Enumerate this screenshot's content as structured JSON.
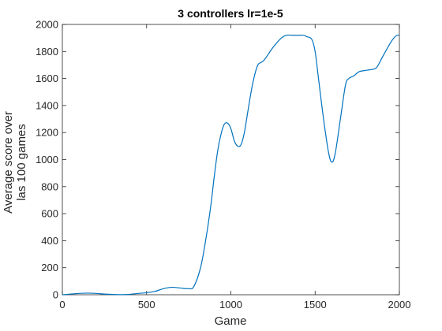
{
  "chart_data": {
    "type": "line",
    "title": "3 controllers lr=1e-5",
    "xlabel": "Game",
    "ylabel_lines": [
      "Average score over",
      "las 100 games"
    ],
    "xlim": [
      0,
      2000
    ],
    "ylim": [
      0,
      2000
    ],
    "xticks": [
      0,
      500,
      1000,
      1500,
      2000
    ],
    "yticks": [
      0,
      200,
      400,
      600,
      800,
      1000,
      1200,
      1400,
      1600,
      1800,
      2000
    ],
    "grid": false,
    "line_color": "#0072bd",
    "series": [
      {
        "x": [
          0,
          50,
          100,
          150,
          200,
          250,
          300,
          350,
          400,
          450,
          500,
          550,
          600,
          650,
          700,
          750,
          780,
          820,
          850,
          880,
          900,
          920,
          940,
          960,
          980,
          1000,
          1020,
          1040,
          1060,
          1080,
          1100,
          1120,
          1140,
          1160,
          1180,
          1200,
          1250,
          1300,
          1330,
          1360,
          1400,
          1430,
          1450,
          1480,
          1500,
          1520,
          1550,
          1580,
          1600,
          1620,
          1650,
          1680,
          1700,
          1730,
          1760,
          1800,
          1850,
          1870,
          1900,
          1950,
          1980,
          2000
        ],
        "y": [
          0,
          5,
          10,
          12,
          10,
          5,
          2,
          1,
          3,
          10,
          15,
          25,
          45,
          55,
          50,
          45,
          60,
          200,
          400,
          650,
          860,
          1050,
          1180,
          1260,
          1270,
          1230,
          1140,
          1100,
          1110,
          1200,
          1350,
          1500,
          1620,
          1700,
          1720,
          1740,
          1830,
          1900,
          1920,
          1920,
          1920,
          1920,
          1910,
          1890,
          1800,
          1600,
          1300,
          1050,
          980,
          1050,
          1300,
          1550,
          1600,
          1620,
          1650,
          1660,
          1670,
          1690,
          1760,
          1870,
          1915,
          1920
        ]
      }
    ]
  }
}
